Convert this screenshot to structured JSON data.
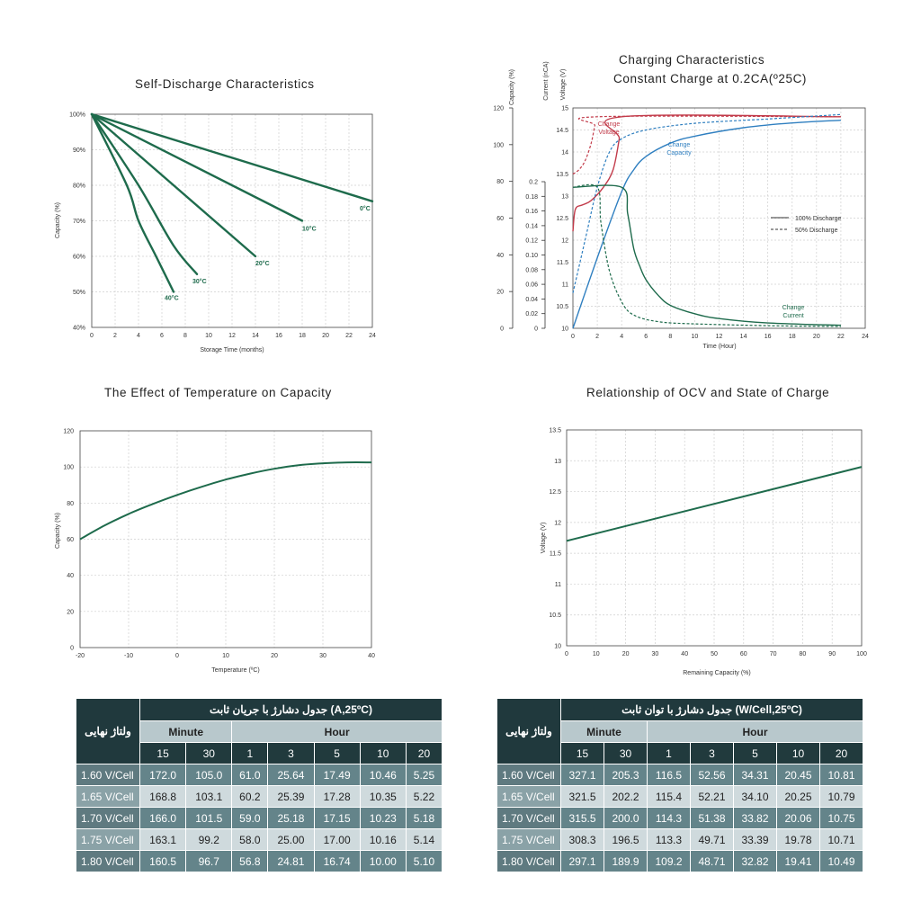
{
  "colors": {
    "green": "#1e6b4c",
    "red": "#c23b4a",
    "blue": "#2f7fc0",
    "grid": "#cfcfcf",
    "table_dark": "#20393d"
  },
  "chart_data": [
    {
      "type": "line",
      "title": "Self-Discharge Characteristics",
      "xlabel": "Storage Time (months)",
      "ylabel": "Capacity (%)",
      "xticks": [
        "0",
        "2",
        "4",
        "6",
        "8",
        "10",
        "12",
        "14",
        "16",
        "18",
        "20",
        "22",
        "24"
      ],
      "yticks": [
        "40%",
        "50%",
        "60%",
        "70%",
        "80%",
        "90%",
        "100%"
      ],
      "xlim": [
        0,
        24
      ],
      "ylim": [
        40,
        100
      ],
      "grid": true,
      "series": [
        {
          "name": "0°C",
          "points": [
            [
              0,
              100
            ],
            [
              24,
              75.5
            ]
          ]
        },
        {
          "name": "10°C",
          "points": [
            [
              0,
              100
            ],
            [
              18,
              70
            ]
          ]
        },
        {
          "name": "20°C",
          "points": [
            [
              0,
              100
            ],
            [
              14,
              60
            ]
          ]
        },
        {
          "name": "30°C",
          "points": [
            [
              0,
              100
            ],
            [
              4,
              80
            ],
            [
              7,
              63
            ],
            [
              9,
              55
            ]
          ]
        },
        {
          "name": "40°C",
          "points": [
            [
              0,
              100
            ],
            [
              3,
              80
            ],
            [
              4,
              70
            ],
            [
              5.5,
              60
            ],
            [
              7,
              50
            ]
          ]
        }
      ]
    },
    {
      "type": "line",
      "title": "Charging Characteristics",
      "subtitle": "Constant Charge at 0.2CA(º25C)",
      "xlabel": "Time (Hour)",
      "axis_titles": [
        "Capacity (%)",
        "Current (nCA)",
        "Voltage (V)"
      ],
      "xticks": [
        "0",
        "2",
        "4",
        "6",
        "8",
        "10",
        "12",
        "14",
        "16",
        "18",
        "20",
        "22",
        "24"
      ],
      "capacity_ticks": [
        "0",
        "20",
        "40",
        "60",
        "80",
        "100",
        "120"
      ],
      "current_ticks": [
        "0",
        "0.02",
        "0.04",
        "0.06",
        "0.08",
        "0.10",
        "0.12",
        "0.14",
        "0.16",
        "0.18",
        "0.2"
      ],
      "voltage_ticks": [
        "10",
        "10.5",
        "11",
        "11.5",
        "12",
        "12.5",
        "13",
        "13.5",
        "14",
        "14.5",
        "15"
      ],
      "xlim": [
        0,
        24
      ],
      "voltage_lim": [
        10,
        15
      ],
      "grid": true,
      "legend": {
        "position": "right",
        "entries": [
          "100% Discharge",
          "50% Discharge"
        ]
      },
      "annotations": [
        "Change Voltage",
        "Change Capacity",
        "Change Current"
      ],
      "series": [
        {
          "name": "Change Voltage",
          "style": "100% Discharge",
          "points": [
            [
              0,
              12.2
            ],
            [
              0.2,
              12.7
            ],
            [
              0.8,
              12.8
            ],
            [
              1.5,
              12.9
            ],
            [
              2.5,
              13.2
            ],
            [
              3.3,
              13.6
            ],
            [
              3.8,
              14.3
            ],
            [
              4,
              14.8
            ],
            [
              22,
              14.8
            ]
          ]
        },
        {
          "name": "Change Voltage",
          "style": "50% Discharge",
          "points": [
            [
              0,
              13.5
            ],
            [
              0.5,
              13.6
            ],
            [
              1,
              13.8
            ],
            [
              1.5,
              14.2
            ],
            [
              1.8,
              14.6
            ],
            [
              2,
              14.8
            ],
            [
              22,
              14.8
            ]
          ]
        },
        {
          "name": "Change Capacity",
          "style": "100% Discharge",
          "points": [
            [
              0,
              10
            ],
            [
              2,
              11.6
            ],
            [
              4,
              13.1
            ],
            [
              5,
              13.6
            ],
            [
              6,
              13.9
            ],
            [
              8,
              14.2
            ],
            [
              10,
              14.36
            ],
            [
              14,
              14.55
            ],
            [
              18,
              14.66
            ],
            [
              22,
              14.72
            ]
          ]
        },
        {
          "name": "Change Capacity",
          "style": "50% Discharge",
          "points": [
            [
              0,
              10.8
            ],
            [
              1,
              12
            ],
            [
              2,
              13.2
            ],
            [
              3,
              14
            ],
            [
              4,
              14.3
            ],
            [
              6,
              14.5
            ],
            [
              10,
              14.65
            ],
            [
              16,
              14.75
            ],
            [
              22,
              14.85
            ]
          ]
        },
        {
          "name": "Change Current",
          "style": "100% Discharge",
          "points": [
            [
              0,
              13.2
            ],
            [
              4,
              13.2
            ],
            [
              4.5,
              12.6
            ],
            [
              5,
              11.8
            ],
            [
              5.5,
              11.4
            ],
            [
              6,
              11.1
            ],
            [
              7,
              10.75
            ],
            [
              8,
              10.52
            ],
            [
              10,
              10.33
            ],
            [
              12,
              10.22
            ],
            [
              16,
              10.12
            ],
            [
              22,
              10.07
            ]
          ]
        },
        {
          "name": "Change Current",
          "style": "50% Discharge",
          "points": [
            [
              0,
              13.2
            ],
            [
              2,
              13.2
            ],
            [
              2.3,
              12.4
            ],
            [
              3,
              11.3
            ],
            [
              4,
              10.6
            ],
            [
              5,
              10.3
            ],
            [
              7,
              10.15
            ],
            [
              10,
              10.1
            ],
            [
              16,
              10.06
            ],
            [
              22,
              10.04
            ]
          ]
        }
      ]
    },
    {
      "type": "line",
      "title": "The Effect of Temperature on Capacity",
      "xlabel": "Temperature (ºC)",
      "ylabel": "Capacity (%)",
      "xticks": [
        "-20",
        "-10",
        "0",
        "10",
        "20",
        "30",
        "40"
      ],
      "yticks": [
        "0",
        "20",
        "40",
        "60",
        "80",
        "100",
        "120"
      ],
      "xlim": [
        -20,
        40
      ],
      "ylim": [
        0,
        120
      ],
      "grid": true,
      "series": [
        {
          "points": [
            [
              -20,
              60
            ],
            [
              -15,
              67.5
            ],
            [
              -10,
              74
            ],
            [
              -5,
              79.5
            ],
            [
              0,
              84.5
            ],
            [
              5,
              89
            ],
            [
              10,
              93
            ],
            [
              15,
              96.3
            ],
            [
              20,
              99
            ],
            [
              25,
              101
            ],
            [
              30,
              102
            ],
            [
              35,
              102.5
            ],
            [
              40,
              102.5
            ]
          ]
        }
      ]
    },
    {
      "type": "line",
      "title": "Relationship of OCV and State of Charge",
      "xlabel": "Remaining Capacity (%)",
      "ylabel": "Voltage (V)",
      "xticks": [
        "0",
        "10",
        "20",
        "30",
        "40",
        "50",
        "60",
        "70",
        "80",
        "90",
        "100"
      ],
      "yticks": [
        "10",
        "10.5",
        "11",
        "11.5",
        "12",
        "12.5",
        "13",
        "13.5"
      ],
      "xlim": [
        0,
        100
      ],
      "ylim": [
        10,
        13.5
      ],
      "grid": true,
      "series": [
        {
          "points": [
            [
              0,
              11.7
            ],
            [
              100,
              12.9
            ]
          ]
        }
      ]
    }
  ],
  "tables": [
    {
      "title": "جدول دشارژ با جریان ثابت (A,25ºC)",
      "row_header": "ولتاژ نهایی",
      "group_minute": "Minute",
      "group_hour": "Hour",
      "columns": [
        "15",
        "30",
        "1",
        "3",
        "5",
        "10",
        "20"
      ],
      "rows": [
        {
          "label": "1.60 V/Cell",
          "values": [
            "172.0",
            "105.0",
            "61.0",
            "25.64",
            "17.49",
            "10.46",
            "5.25"
          ]
        },
        {
          "label": "1.65 V/Cell",
          "values": [
            "168.8",
            "103.1",
            "60.2",
            "25.39",
            "17.28",
            "10.35",
            "5.22"
          ]
        },
        {
          "label": "1.70 V/Cell",
          "values": [
            "166.0",
            "101.5",
            "59.0",
            "25.18",
            "17.15",
            "10.23",
            "5.18"
          ]
        },
        {
          "label": "1.75 V/Cell",
          "values": [
            "163.1",
            "99.2",
            "58.0",
            "25.00",
            "17.00",
            "10.16",
            "5.14"
          ]
        },
        {
          "label": "1.80 V/Cell",
          "values": [
            "160.5",
            "96.7",
            "56.8",
            "24.81",
            "16.74",
            "10.00",
            "5.10"
          ]
        }
      ]
    },
    {
      "title": "جدول دشارژ با توان ثابت (W/Cell,25ºC)",
      "row_header": "ولتاژ نهایی",
      "group_minute": "Minute",
      "group_hour": "Hour",
      "columns": [
        "15",
        "30",
        "1",
        "3",
        "5",
        "10",
        "20"
      ],
      "rows": [
        {
          "label": "1.60 V/Cell",
          "values": [
            "327.1",
            "205.3",
            "116.5",
            "52.56",
            "34.31",
            "20.45",
            "10.81"
          ]
        },
        {
          "label": "1.65 V/Cell",
          "values": [
            "321.5",
            "202.2",
            "115.4",
            "52.21",
            "34.10",
            "20.25",
            "10.79"
          ]
        },
        {
          "label": "1.70 V/Cell",
          "values": [
            "315.5",
            "200.0",
            "114.3",
            "51.38",
            "33.82",
            "20.06",
            "10.75"
          ]
        },
        {
          "label": "1.75 V/Cell",
          "values": [
            "308.3",
            "196.5",
            "113.3",
            "49.71",
            "33.39",
            "19.78",
            "10.71"
          ]
        },
        {
          "label": "1.80 V/Cell",
          "values": [
            "297.1",
            "189.9",
            "109.2",
            "48.71",
            "32.82",
            "19.41",
            "10.49"
          ]
        }
      ]
    }
  ]
}
